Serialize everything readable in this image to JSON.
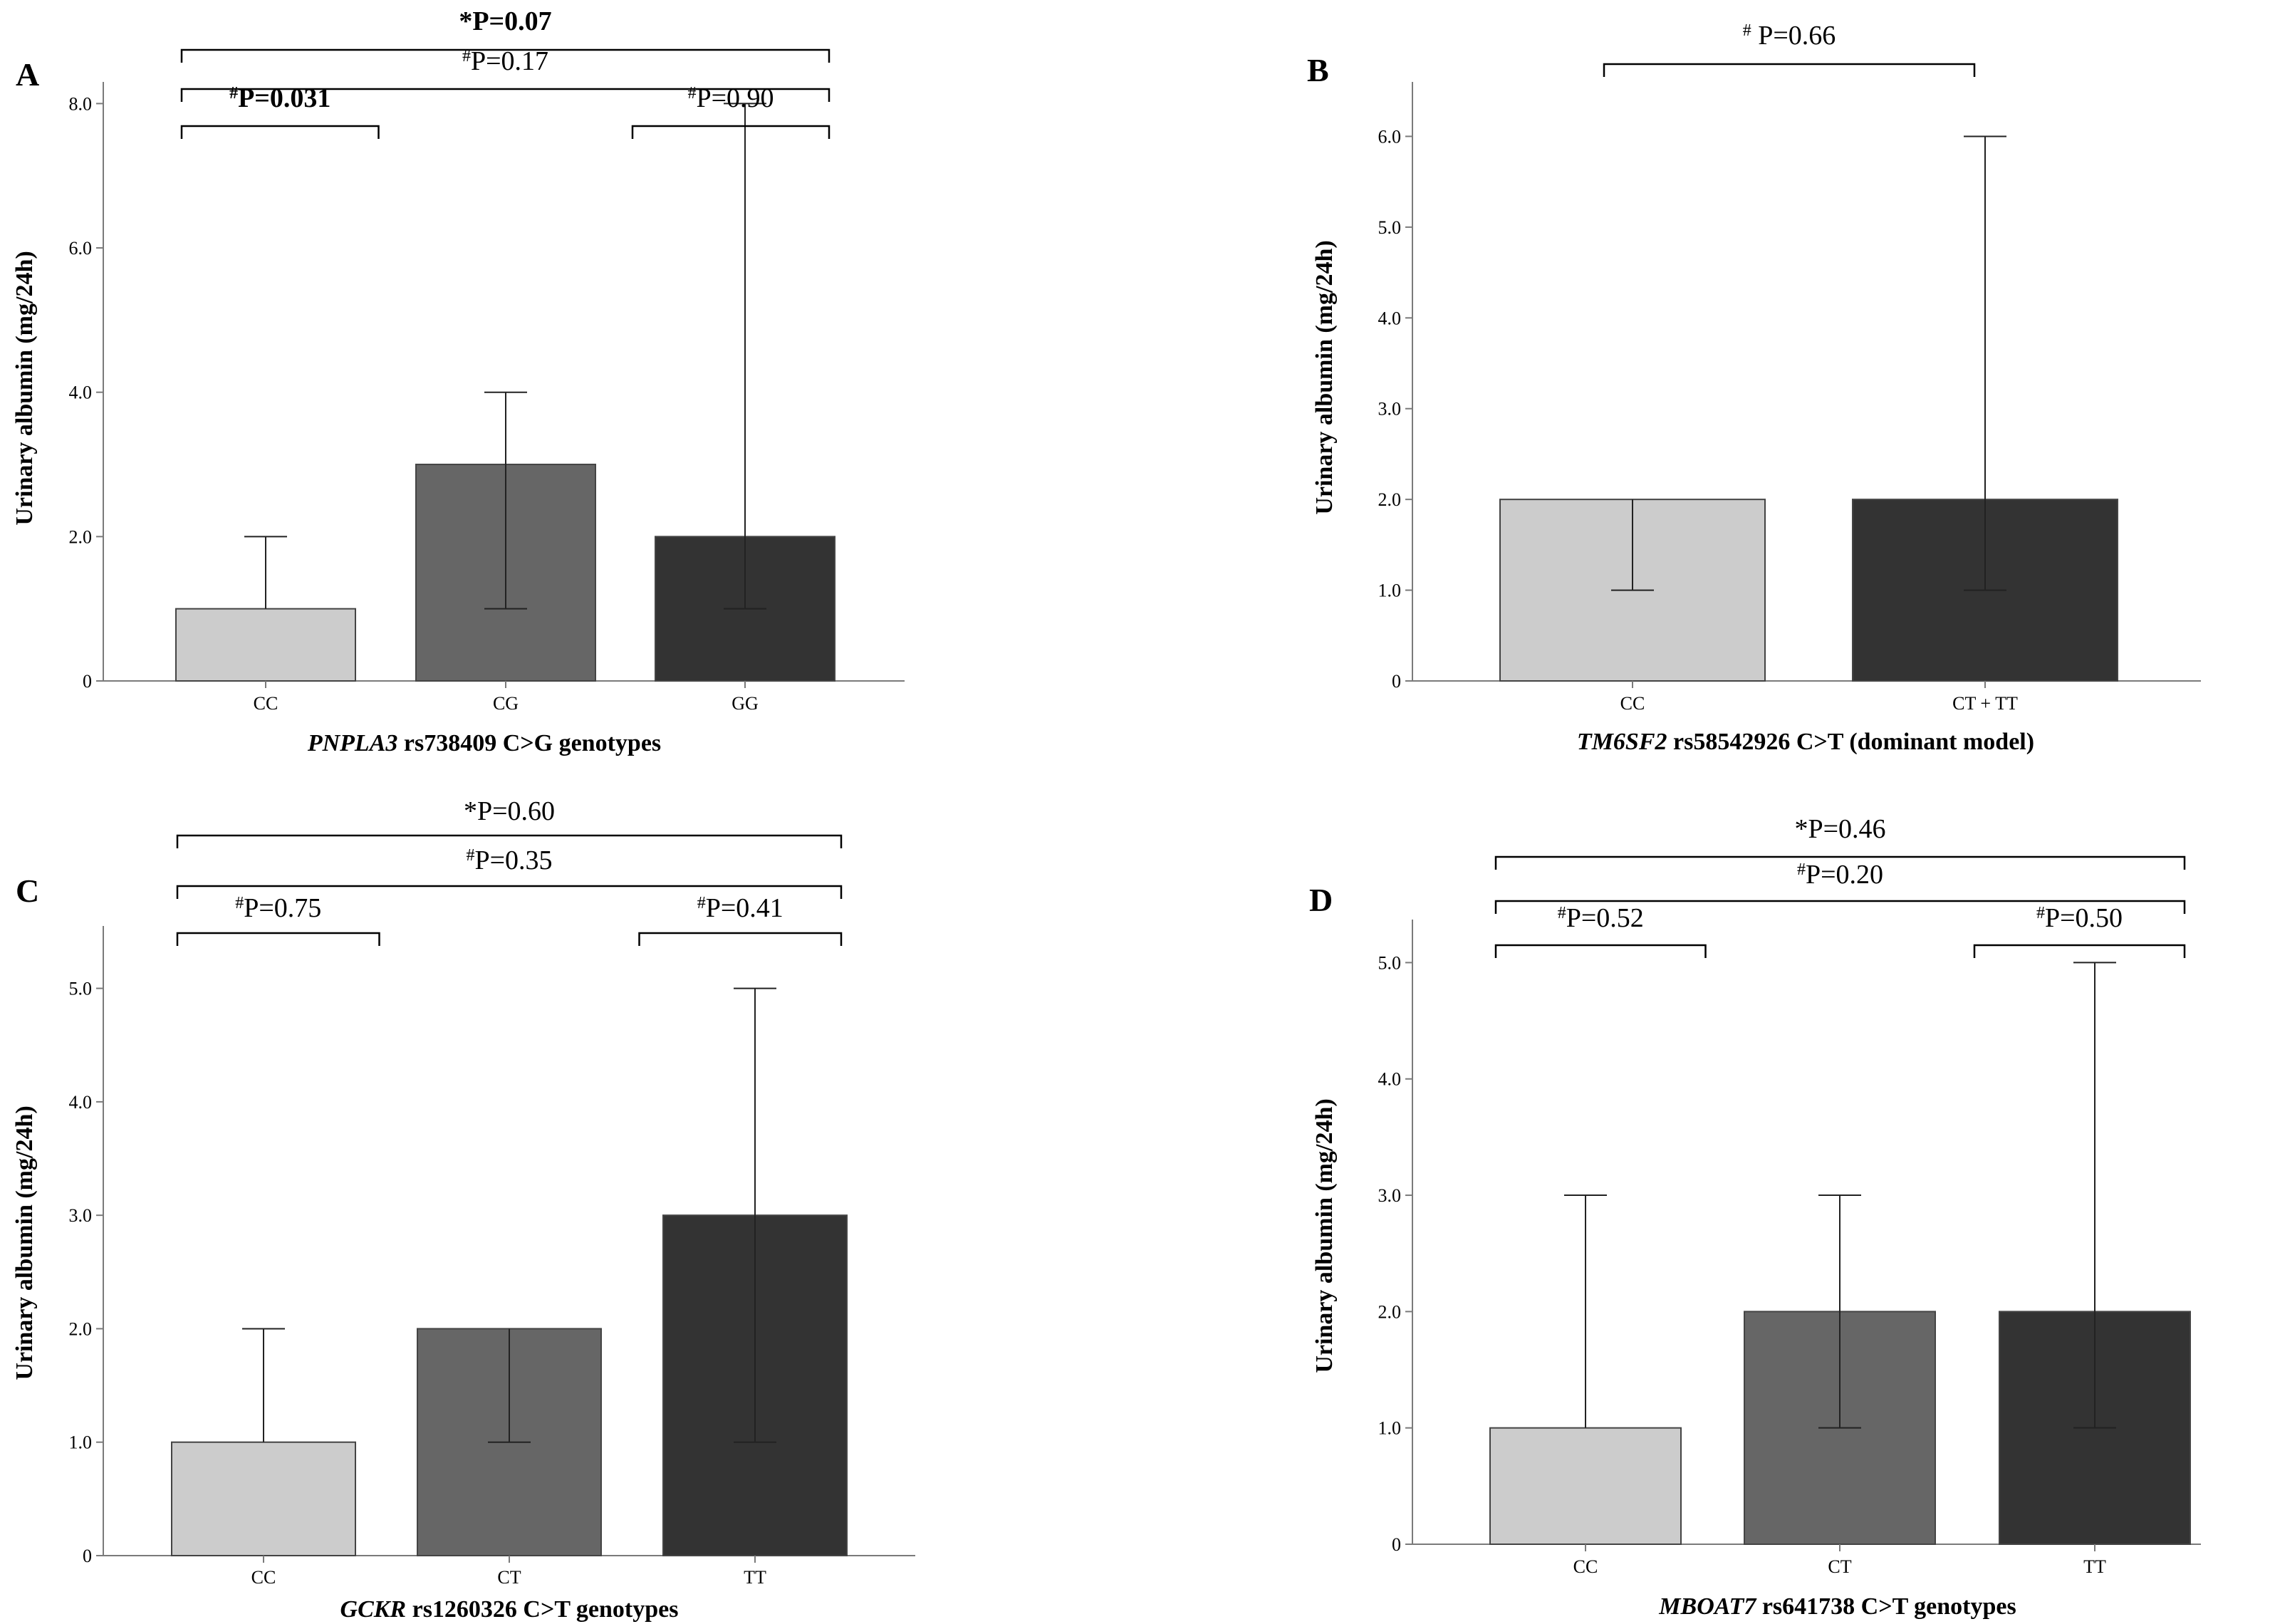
{
  "colors": {
    "light": "#cccccc",
    "mid": "#666666",
    "dark": "#333333",
    "axis": "#7a7a7a",
    "line": "#000000"
  },
  "chart_data": [
    {
      "panel": "A",
      "type": "bar",
      "categories": [
        "CC",
        "CG",
        "GG"
      ],
      "values": [
        1.0,
        3.0,
        2.0
      ],
      "error_low": [
        null,
        1.0,
        1.0
      ],
      "error_high": [
        2.0,
        4.0,
        8.0
      ],
      "bar_colors": [
        "light",
        "mid",
        "dark"
      ],
      "ylabel": "Urinary albumin (mg/24h)",
      "xlabel_italic": "PNPLA3",
      "xlabel_rest": " rs738409 C>G genotypes",
      "ylim": [
        0,
        8.3
      ],
      "yticks": [
        0,
        2.0,
        4.0,
        6.0,
        8.0
      ],
      "ytick_labels": [
        "0",
        "2.0",
        "4.0",
        "6.0",
        "8.0"
      ],
      "annotations": [
        {
          "sym": "*",
          "label": "P=0.07",
          "from": 0,
          "to": 2,
          "level": 3,
          "bold": true
        },
        {
          "sym": "#",
          "label": "P=0.17",
          "from": 0,
          "to": 2,
          "level": 2,
          "bold": false
        },
        {
          "sym": "#",
          "label": "P=0.031",
          "from": 0,
          "to": 1,
          "level": 1,
          "bold": true
        },
        {
          "sym": "#",
          "label": "P=0.90",
          "from": 1,
          "to": 2,
          "level": 1,
          "bold": false
        }
      ]
    },
    {
      "panel": "B",
      "type": "bar",
      "categories": [
        "CC",
        "CT + TT"
      ],
      "values": [
        2.0,
        2.0
      ],
      "error_low": [
        1.0,
        1.0
      ],
      "error_high": [
        null,
        6.0
      ],
      "bar_colors": [
        "light",
        "dark"
      ],
      "ylabel": "Urinary albumin (mg/24h)",
      "xlabel_italic": "TM6SF2",
      "xlabel_rest": " rs58542926  C>T (dominant model)",
      "ylim": [
        0,
        6.6
      ],
      "yticks": [
        0,
        1.0,
        2.0,
        3.0,
        4.0,
        5.0,
        6.0
      ],
      "ytick_labels": [
        "0",
        "1.0",
        "2.0",
        "3.0",
        "4.0",
        "5.0",
        "6.0"
      ],
      "annotations": [
        {
          "sym": "#",
          "label": " P=0.66",
          "from": 0,
          "to": 1,
          "level": 1,
          "bold": false
        }
      ]
    },
    {
      "panel": "C",
      "type": "bar",
      "categories": [
        "CC",
        "CT",
        "TT"
      ],
      "values": [
        1.0,
        2.0,
        3.0
      ],
      "error_low": [
        null,
        1.0,
        1.0
      ],
      "error_high": [
        2.0,
        null,
        5.0
      ],
      "bar_colors": [
        "light",
        "mid",
        "dark"
      ],
      "ylabel": "Urinary albumin (mg/24h)",
      "xlabel_italic": "GCKR",
      "xlabel_rest": " rs1260326 C>T genotypes",
      "ylim": [
        0,
        5.55
      ],
      "yticks": [
        0,
        1.0,
        2.0,
        3.0,
        4.0,
        5.0
      ],
      "ytick_labels": [
        "0",
        "1.0",
        "2.0",
        "3.0",
        "4.0",
        "5.0"
      ],
      "annotations": [
        {
          "sym": "*",
          "label": "P=0.60",
          "from": 0,
          "to": 2,
          "level": 3,
          "bold": false
        },
        {
          "sym": "#",
          "label": "P=0.35",
          "from": 0,
          "to": 2,
          "level": 2,
          "bold": false
        },
        {
          "sym": "#",
          "label": "P=0.75",
          "from": 0,
          "to": 1,
          "level": 1,
          "bold": false
        },
        {
          "sym": "#",
          "label": "P=0.41",
          "from": 1,
          "to": 2,
          "level": 1,
          "bold": false
        }
      ]
    },
    {
      "panel": "D",
      "type": "bar",
      "categories": [
        "CC",
        "CT",
        "TT"
      ],
      "values": [
        1.0,
        2.0,
        2.0
      ],
      "error_low": [
        null,
        1.0,
        1.0
      ],
      "error_high": [
        3.0,
        3.0,
        5.0
      ],
      "bar_colors": [
        "light",
        "mid",
        "dark"
      ],
      "ylabel": "Urinary albumin (mg/24h)",
      "xlabel_italic": "MBOAT7",
      "xlabel_rest": " rs641738 C>T genotypes",
      "ylim": [
        0,
        5.37
      ],
      "yticks": [
        0,
        1.0,
        2.0,
        3.0,
        4.0,
        5.0
      ],
      "ytick_labels": [
        "0",
        "1.0",
        "2.0",
        "3.0",
        "4.0",
        "5.0"
      ],
      "annotations": [
        {
          "sym": "*",
          "label": "P=0.46",
          "from": 0,
          "to": 2,
          "level": 3,
          "bold": false
        },
        {
          "sym": "#",
          "label": "P=0.20",
          "from": 0,
          "to": 2,
          "level": 2,
          "bold": false
        },
        {
          "sym": "#",
          "label": "P=0.52",
          "from": 0,
          "to": 1,
          "level": 1,
          "bold": false
        },
        {
          "sym": "#",
          "label": "P=0.50",
          "from": 1,
          "to": 2,
          "level": 1,
          "bold": false
        }
      ]
    }
  ]
}
